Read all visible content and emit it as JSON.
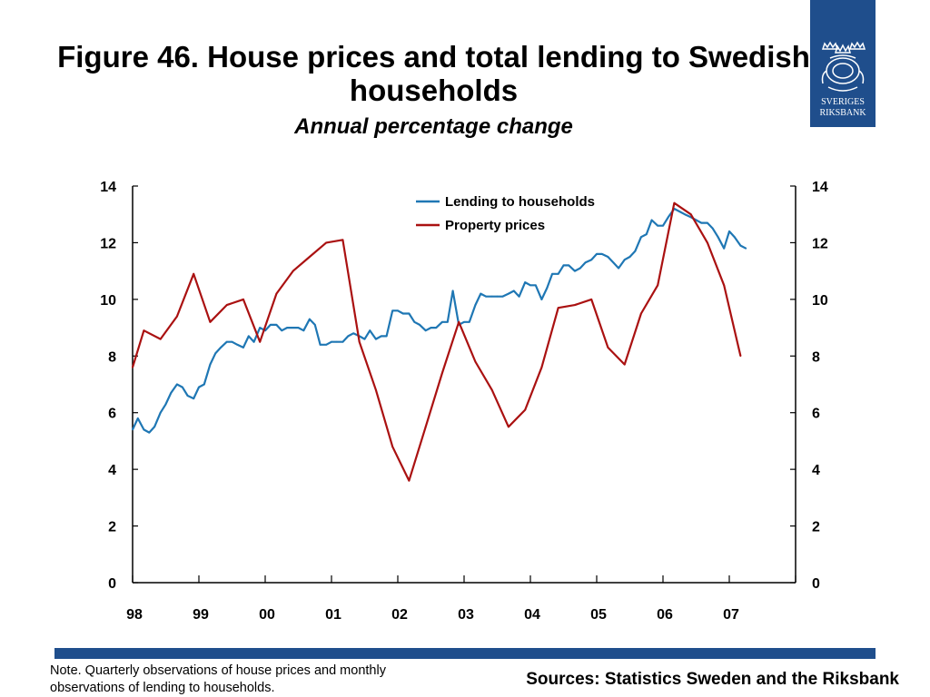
{
  "header": {
    "title": "Figure 46. House prices and total lending to Swedish households",
    "subtitle": "Annual percentage change"
  },
  "logo": {
    "line1": "SVERIGES",
    "line2": "RIKSBANK",
    "icon": "crown-shield-icon",
    "color": "#1f4e8c"
  },
  "footer": {
    "note": "Note. Quarterly observations of house prices and monthly observations of lending to households.",
    "sources": "Sources: Statistics Sweden and the Riksbank",
    "bar_color": "#1f4e8c"
  },
  "chart_data": {
    "type": "line",
    "title": "",
    "xlabel": "",
    "ylabel": "",
    "ylim": [
      0,
      14
    ],
    "yticks": [
      0,
      2,
      4,
      6,
      8,
      10,
      12,
      14
    ],
    "xlim": [
      1998.0,
      2008.0
    ],
    "xtick_labels": [
      "98",
      "99",
      "00",
      "01",
      "02",
      "03",
      "04",
      "05",
      "06",
      "07"
    ],
    "grid": false,
    "legend_position": "top-center",
    "series": [
      {
        "name": "Lending to households",
        "color": "#1f77b4",
        "x": [
          1998.0,
          1998.08,
          1998.17,
          1998.25,
          1998.33,
          1998.42,
          1998.5,
          1998.58,
          1998.67,
          1998.75,
          1998.83,
          1998.92,
          1999.0,
          1999.08,
          1999.17,
          1999.25,
          1999.33,
          1999.42,
          1999.5,
          1999.58,
          1999.67,
          1999.75,
          1999.83,
          1999.92,
          2000.0,
          2000.08,
          2000.17,
          2000.25,
          2000.33,
          2000.42,
          2000.5,
          2000.58,
          2000.67,
          2000.75,
          2000.83,
          2000.92,
          2001.0,
          2001.08,
          2001.17,
          2001.25,
          2001.33,
          2001.42,
          2001.5,
          2001.58,
          2001.67,
          2001.75,
          2001.83,
          2001.92,
          2002.0,
          2002.08,
          2002.17,
          2002.25,
          2002.33,
          2002.42,
          2002.5,
          2002.58,
          2002.67,
          2002.75,
          2002.83,
          2002.92,
          2003.0,
          2003.08,
          2003.17,
          2003.25,
          2003.33,
          2003.42,
          2003.5,
          2003.58,
          2003.67,
          2003.75,
          2003.83,
          2003.92,
          2004.0,
          2004.08,
          2004.17,
          2004.25,
          2004.33,
          2004.42,
          2004.5,
          2004.58,
          2004.67,
          2004.75,
          2004.83,
          2004.92,
          2005.0,
          2005.08,
          2005.17,
          2005.25,
          2005.33,
          2005.42,
          2005.5,
          2005.58,
          2005.67,
          2005.75,
          2005.83,
          2005.92,
          2006.0,
          2006.08,
          2006.17,
          2006.25,
          2006.33,
          2006.42,
          2006.5,
          2006.58,
          2006.67,
          2006.75,
          2006.83,
          2006.92,
          2007.0,
          2007.08,
          2007.17,
          2007.25
        ],
        "values": [
          5.4,
          5.8,
          5.4,
          5.3,
          5.5,
          6.0,
          6.3,
          6.7,
          7.0,
          6.9,
          6.6,
          6.5,
          6.9,
          7.0,
          7.7,
          8.1,
          8.3,
          8.5,
          8.5,
          8.4,
          8.3,
          8.7,
          8.5,
          9.0,
          8.9,
          9.1,
          9.1,
          8.9,
          9.0,
          9.0,
          9.0,
          8.9,
          9.3,
          9.1,
          8.4,
          8.4,
          8.5,
          8.5,
          8.5,
          8.7,
          8.8,
          8.7,
          8.6,
          8.9,
          8.6,
          8.7,
          8.7,
          9.6,
          9.6,
          9.5,
          9.5,
          9.2,
          9.1,
          8.9,
          9.0,
          9.0,
          9.2,
          9.2,
          10.3,
          9.1,
          9.2,
          9.2,
          9.8,
          10.2,
          10.1,
          10.1,
          10.1,
          10.1,
          10.2,
          10.3,
          10.1,
          10.6,
          10.5,
          10.5,
          10.0,
          10.4,
          10.9,
          10.9,
          11.2,
          11.2,
          11.0,
          11.1,
          11.3,
          11.4,
          11.6,
          11.6,
          11.5,
          11.3,
          11.1,
          11.4,
          11.5,
          11.7,
          12.2,
          12.3,
          12.8,
          12.6,
          12.6,
          12.9,
          13.2,
          13.1,
          13.0,
          12.9,
          12.8,
          12.7,
          12.7,
          12.5,
          12.2,
          11.8,
          12.4,
          12.2,
          11.9,
          11.8
        ]
      },
      {
        "name": "Property prices",
        "color": "#aa1111",
        "x": [
          1998.0,
          1998.17,
          1998.42,
          1998.67,
          1998.92,
          1999.17,
          1999.42,
          1999.67,
          1999.92,
          2000.17,
          2000.42,
          2000.67,
          2000.92,
          2001.17,
          2001.42,
          2001.67,
          2001.92,
          2002.17,
          2002.42,
          2002.67,
          2002.92,
          2003.17,
          2003.42,
          2003.67,
          2003.92,
          2004.17,
          2004.42,
          2004.67,
          2004.92,
          2005.17,
          2005.42,
          2005.67,
          2005.92,
          2006.17,
          2006.42,
          2006.67,
          2006.92,
          2007.17
        ],
        "values": [
          7.6,
          8.9,
          8.6,
          9.4,
          10.9,
          9.2,
          9.8,
          10.0,
          8.5,
          10.2,
          11.0,
          11.5,
          12.0,
          12.1,
          8.5,
          6.8,
          4.8,
          3.6,
          5.5,
          7.4,
          9.2,
          7.8,
          6.8,
          5.5,
          6.1,
          7.6,
          9.7,
          9.8,
          10.0,
          8.3,
          7.7,
          9.5,
          10.5,
          13.4,
          13.0,
          12.0,
          10.5,
          8.0
        ]
      }
    ]
  }
}
